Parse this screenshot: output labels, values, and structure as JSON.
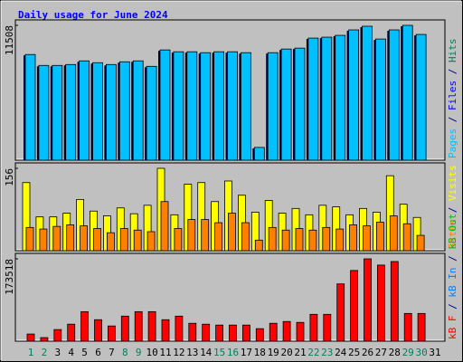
{
  "title": "Daily usage for June 2024",
  "x_axis": {
    "categories": [
      "1",
      "2",
      "3",
      "4",
      "5",
      "6",
      "7",
      "8",
      "9",
      "10",
      "11",
      "12",
      "13",
      "14",
      "15",
      "16",
      "17",
      "18",
      "19",
      "20",
      "21",
      "22",
      "23",
      "24",
      "25",
      "26",
      "27",
      "28",
      "29",
      "30",
      "31"
    ],
    "weekend_indices": [
      0,
      1,
      7,
      8,
      14,
      15,
      21,
      22,
      28,
      29
    ],
    "weekend_color": "#00805c",
    "weekday_color": "#000000"
  },
  "chart_data": [
    {
      "type": "bar",
      "ylim": [
        0,
        11508
      ],
      "yticks": [
        11508
      ],
      "legend_separator": " / ",
      "series": [
        {
          "name": "Pages",
          "color": "#00c0ff",
          "values": [
            9020,
            8087,
            8087,
            8165,
            8476,
            8320,
            8165,
            8398,
            8476,
            8009,
            9409,
            9253,
            9253,
            9176,
            9253,
            9253,
            9176,
            1089,
            9176,
            9487,
            9565,
            10420,
            10498,
            10653,
            11120,
            11431,
            10342,
            11120,
            11508,
            10731,
            null
          ]
        },
        {
          "name": "Files",
          "color": "#0000ff",
          "values": []
        },
        {
          "name": "Hits",
          "color": "#00805c",
          "values": []
        }
      ]
    },
    {
      "type": "bar",
      "ylim": [
        0,
        156
      ],
      "yticks": [
        156
      ],
      "legend_separator": " / ",
      "series": [
        {
          "name": "Sites",
          "color": "#ff8000",
          "values": [
            44,
            41,
            46,
            49,
            47,
            42,
            34,
            42,
            39,
            36,
            93,
            42,
            59,
            59,
            53,
            71,
            53,
            20,
            44,
            39,
            42,
            39,
            44,
            41,
            49,
            47,
            54,
            66,
            51,
            29,
            null
          ]
        },
        {
          "name": "Visits",
          "color": "#ffff00",
          "values": [
            129,
            64,
            64,
            71,
            97,
            75,
            66,
            81,
            70,
            86,
            156,
            68,
            126,
            129,
            93,
            132,
            105,
            73,
            95,
            71,
            80,
            68,
            86,
            83,
            68,
            80,
            73,
            142,
            88,
            63,
            null
          ]
        }
      ]
    },
    {
      "type": "bar",
      "ylim": [
        0,
        173518
      ],
      "yticks": [
        173518
      ],
      "legend_separator": " / ",
      "series": [
        {
          "name": "kB F",
          "color": "#ff0000",
          "values": [
            15088,
            7544,
            24518,
            35834,
            62238,
            45264,
            32062,
            52808,
            62238,
            62238,
            45264,
            52808,
            37720,
            35834,
            33948,
            33948,
            33948,
            26404,
            37720,
            41492,
            39606,
            56580,
            56580,
            120704,
            148994,
            173518,
            160310,
            167854,
            58466,
            58466,
            null
          ]
        },
        {
          "name": "kB In",
          "color": "#0080ff",
          "values": []
        },
        {
          "name": "kB Out",
          "color": "#00c000",
          "values": []
        }
      ]
    }
  ]
}
